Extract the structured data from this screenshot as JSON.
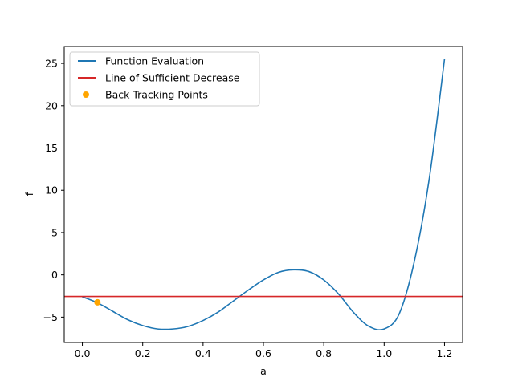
{
  "chart_data": {
    "type": "line",
    "title": "",
    "xlabel": "a",
    "ylabel": "f",
    "xlim": [
      -0.06,
      1.26
    ],
    "ylim": [
      -8.0,
      27.0
    ],
    "xticks": [
      0.0,
      0.2,
      0.4,
      0.6,
      0.8,
      1.0,
      1.2
    ],
    "xtick_labels": [
      "0.0",
      "0.2",
      "0.4",
      "0.6",
      "0.8",
      "1.0",
      "1.2"
    ],
    "yticks": [
      -5,
      0,
      5,
      10,
      15,
      20,
      25
    ],
    "ytick_labels": [
      "−5",
      "0",
      "5",
      "10",
      "15",
      "20",
      "25"
    ],
    "grid": false,
    "legend_position": "top-left",
    "series": [
      {
        "name": "Function Evaluation",
        "kind": "line",
        "color": "#1f77b4",
        "x": [
          0.0,
          0.05,
          0.1,
          0.15,
          0.2,
          0.25,
          0.3,
          0.35,
          0.4,
          0.45,
          0.5,
          0.55,
          0.6,
          0.65,
          0.7,
          0.75,
          0.8,
          0.85,
          0.9,
          0.95,
          1.0,
          1.05,
          1.1,
          1.15,
          1.2
        ],
        "y": [
          -2.6,
          -3.3,
          -4.3,
          -5.3,
          -6.0,
          -6.4,
          -6.4,
          -6.1,
          -5.4,
          -4.4,
          -3.1,
          -1.8,
          -0.6,
          0.3,
          0.6,
          0.4,
          -0.6,
          -2.3,
          -4.5,
          -6.1,
          -6.4,
          -4.6,
          1.6,
          11.5,
          25.5
        ]
      },
      {
        "name": "Line of Sufficient Decrease",
        "kind": "hline",
        "color": "#d62728",
        "y": -2.55
      },
      {
        "name": "Back Tracking Points",
        "kind": "scatter",
        "color": "#ffa500",
        "x": [
          0.05
        ],
        "y": [
          -3.25
        ]
      }
    ]
  }
}
